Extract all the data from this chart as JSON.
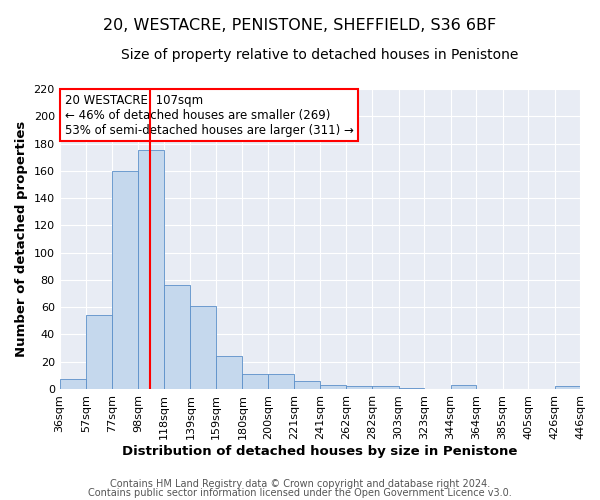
{
  "title": "20, WESTACRE, PENISTONE, SHEFFIELD, S36 6BF",
  "subtitle": "Size of property relative to detached houses in Penistone",
  "xlabel": "Distribution of detached houses by size in Penistone",
  "ylabel": "Number of detached properties",
  "bar_color": "#c5d8ed",
  "bar_edge_color": "#5b8fc9",
  "background_color": "#e8ecf4",
  "bin_edges": [
    36,
    57,
    77,
    98,
    118,
    139,
    159,
    180,
    200,
    221,
    241,
    262,
    282,
    303,
    323,
    344,
    364,
    385,
    405,
    426,
    446
  ],
  "bin_labels": [
    "36sqm",
    "57sqm",
    "77sqm",
    "98sqm",
    "118sqm",
    "139sqm",
    "159sqm",
    "180sqm",
    "200sqm",
    "221sqm",
    "241sqm",
    "262sqm",
    "282sqm",
    "303sqm",
    "323sqm",
    "344sqm",
    "364sqm",
    "385sqm",
    "405sqm",
    "426sqm",
    "446sqm"
  ],
  "counts": [
    7,
    54,
    160,
    175,
    76,
    61,
    24,
    11,
    11,
    6,
    3,
    2,
    2,
    1,
    0,
    3,
    0,
    0,
    0,
    2
  ],
  "vline_x": 107,
  "ylim": [
    0,
    220
  ],
  "yticks": [
    0,
    20,
    40,
    60,
    80,
    100,
    120,
    140,
    160,
    180,
    200,
    220
  ],
  "annotation_title": "20 WESTACRE: 107sqm",
  "annotation_line1": "← 46% of detached houses are smaller (269)",
  "annotation_line2": "53% of semi-detached houses are larger (311) →",
  "footer1": "Contains HM Land Registry data © Crown copyright and database right 2024.",
  "footer2": "Contains public sector information licensed under the Open Government Licence v3.0.",
  "title_fontsize": 11.5,
  "subtitle_fontsize": 10,
  "axis_label_fontsize": 9.5,
  "tick_fontsize": 8,
  "annotation_fontsize": 8.5,
  "footer_fontsize": 7
}
